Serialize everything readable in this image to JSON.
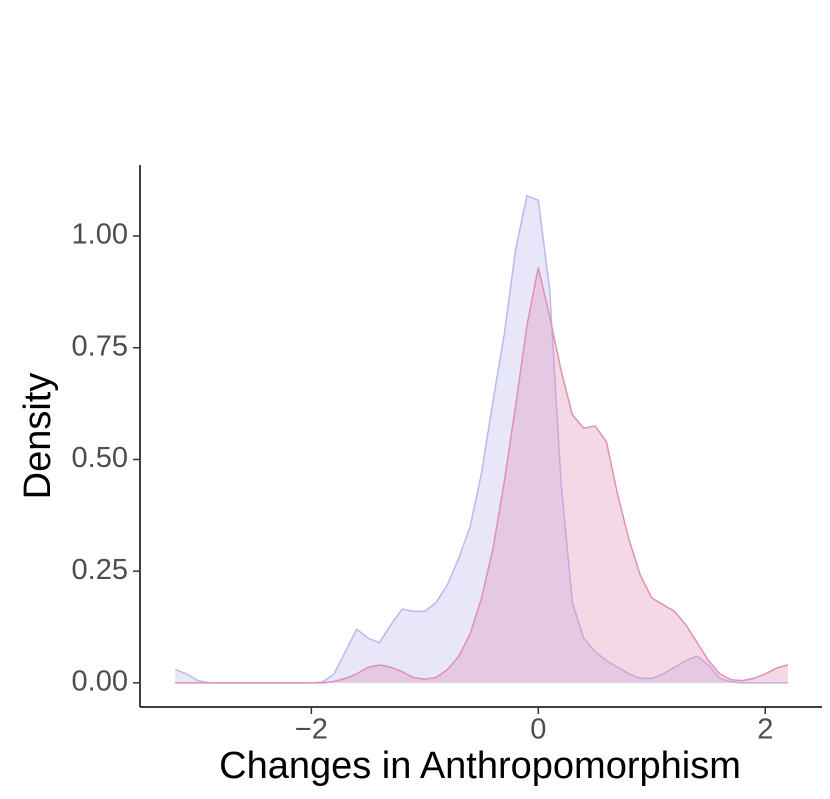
{
  "chart_data": {
    "type": "density",
    "x_label": "Changes in Anthropomorphism",
    "y_label": "Density",
    "x": [
      -3.2,
      -3.1,
      -3.0,
      -2.9,
      -2.8,
      -2.7,
      -2.6,
      -2.5,
      -2.4,
      -2.3,
      -2.2,
      -2.1,
      -2.0,
      -1.9,
      -1.8,
      -1.7,
      -1.6,
      -1.5,
      -1.4,
      -1.3,
      -1.2,
      -1.1,
      -1.0,
      -0.9,
      -0.8,
      -0.7,
      -0.6,
      -0.5,
      -0.4,
      -0.3,
      -0.2,
      -0.1,
      0.0,
      0.1,
      0.2,
      0.3,
      0.4,
      0.5,
      0.6,
      0.7,
      0.8,
      0.9,
      1.0,
      1.1,
      1.2,
      1.3,
      1.4,
      1.5,
      1.6,
      1.7,
      1.8,
      1.9,
      2.0,
      2.1,
      2.2
    ],
    "series": [
      {
        "color": "#b9b9ee",
        "values": [
          0.03,
          0.02,
          0.005,
          0,
          0,
          0,
          0,
          0,
          0,
          0,
          0,
          0,
          0,
          0.002,
          0.02,
          0.07,
          0.12,
          0.1,
          0.09,
          0.13,
          0.165,
          0.16,
          0.16,
          0.18,
          0.22,
          0.28,
          0.35,
          0.47,
          0.63,
          0.78,
          0.97,
          1.09,
          1.08,
          0.88,
          0.45,
          0.18,
          0.1,
          0.07,
          0.05,
          0.035,
          0.02,
          0.01,
          0.01,
          0.02,
          0.035,
          0.05,
          0.06,
          0.04,
          0.01,
          0.002,
          0,
          0,
          0,
          0,
          0
        ]
      },
      {
        "color": "#e38fb5",
        "values": [
          0,
          0,
          0,
          0,
          0,
          0,
          0,
          0,
          0,
          0,
          0,
          0,
          0,
          0,
          0.003,
          0.01,
          0.02,
          0.035,
          0.04,
          0.035,
          0.025,
          0.012,
          0.008,
          0.012,
          0.03,
          0.06,
          0.11,
          0.19,
          0.3,
          0.45,
          0.62,
          0.8,
          0.93,
          0.82,
          0.7,
          0.6,
          0.57,
          0.575,
          0.54,
          0.42,
          0.32,
          0.24,
          0.19,
          0.175,
          0.16,
          0.13,
          0.09,
          0.05,
          0.02,
          0.007,
          0.005,
          0.01,
          0.02,
          0.033,
          0.04
        ]
      }
    ],
    "xlim": [
      -3.51,
      2.5
    ],
    "ylim": [
      -0.054,
      1.159
    ],
    "xticks": [
      {
        "value": -2,
        "label": "−2"
      },
      {
        "value": 0,
        "label": "0"
      },
      {
        "value": 2,
        "label": "2"
      }
    ],
    "yticks": [
      {
        "value": 0,
        "label": "0.00"
      },
      {
        "value": 0.25,
        "label": "0.25"
      },
      {
        "value": 0.5,
        "label": "0.50"
      },
      {
        "value": 0.75,
        "label": "0.75"
      },
      {
        "value": 1,
        "label": "1.00"
      }
    ],
    "grid": false
  }
}
